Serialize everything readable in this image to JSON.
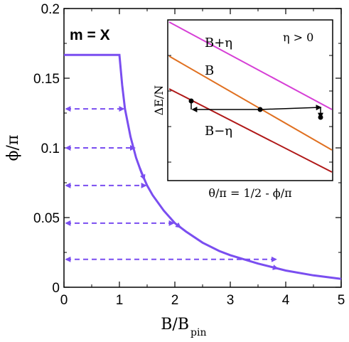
{
  "chart_data": {
    "type": "line",
    "annotation": "m = X",
    "xlabel": "B/B",
    "xlabel_sub": "pin",
    "ylabel": "ϕ/π",
    "xlim": [
      0,
      5
    ],
    "ylim": [
      0,
      0.2
    ],
    "x_ticks": [
      "0",
      "1",
      "2",
      "3",
      "4",
      "5"
    ],
    "y_ticks": [
      "0",
      "0.05",
      "0.1",
      "0.15",
      "0.2"
    ],
    "colors": {
      "main": "#7a4ef0",
      "inset_top": "#d63fd6",
      "inset_mid": "#e07020",
      "inset_bot": "#b01818"
    },
    "series": [
      {
        "x": [
          0,
          1.0,
          1.05,
          1.1,
          1.2,
          1.3,
          1.4,
          1.5,
          1.6,
          1.8,
          2.0,
          2.2,
          2.5,
          2.8,
          3.0,
          3.5,
          4.0,
          4.5,
          5.0
        ],
        "y": [
          0.1667,
          0.1667,
          0.145,
          0.128,
          0.108,
          0.093,
          0.082,
          0.073,
          0.066,
          0.055,
          0.046,
          0.04,
          0.032,
          0.026,
          0.023,
          0.017,
          0.012,
          0.0085,
          0.006
        ]
      }
    ],
    "dashed_arrows": [
      {
        "y": 0.128,
        "x_end": 1.1
      },
      {
        "y": 0.1,
        "x_end": 1.3
      },
      {
        "y": 0.073,
        "x_end": 1.5
      },
      {
        "y": 0.046,
        "x_end": 2.0
      },
      {
        "y": 0.02,
        "x_end": 3.85
      }
    ],
    "curve_arrows": [
      1.45,
      2.1,
      3.85
    ],
    "inset": {
      "xlabel": "θ/π = 1/2 - ϕ/π",
      "ylabel": "ΔE/N",
      "note": "η > 0",
      "lines": [
        "B+η",
        "B",
        "B−η"
      ]
    }
  }
}
